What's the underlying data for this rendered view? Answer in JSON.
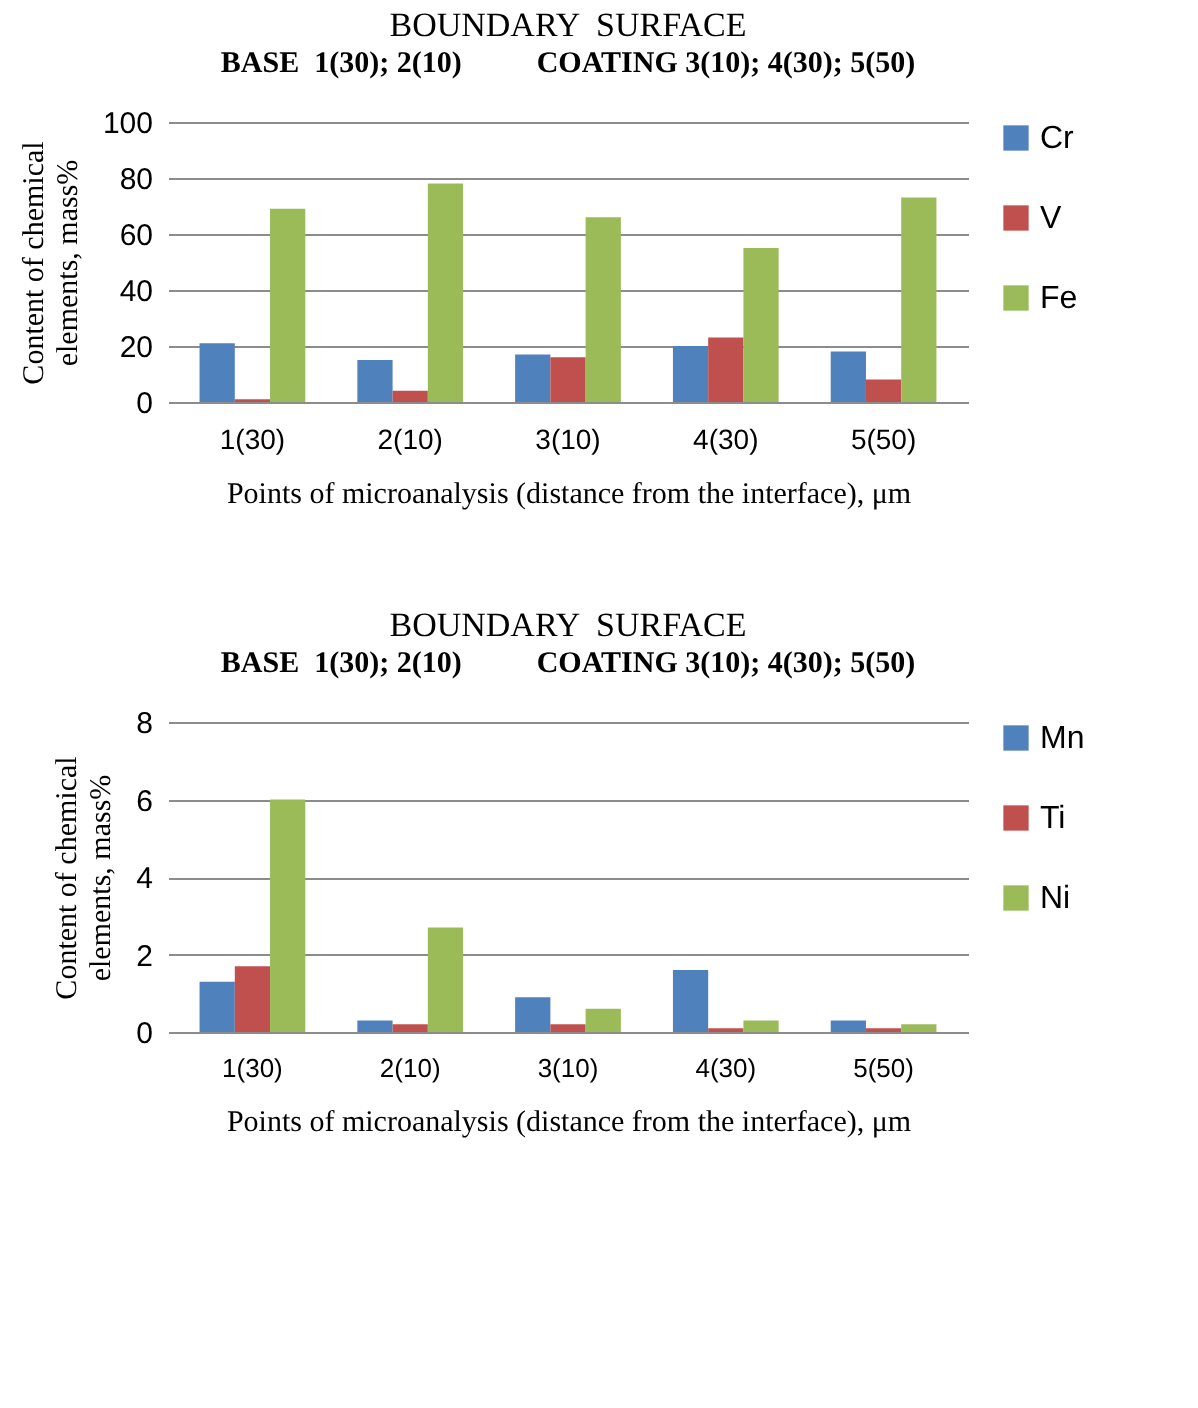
{
  "chart_data": [
    {
      "type": "bar",
      "title": "BOUNDARY  SURFACE",
      "subtitle": "BASE  1(30); 2(10)          COATING 3(10); 4(30); 5(50)",
      "xlabel": "Points of microanalysis (distance from the interface), μm",
      "ylabel": "Content of chemical elements, mass%",
      "categories": [
        "1(30)",
        "2(10)",
        "3(10)",
        "4(30)",
        "5(50)"
      ],
      "series": [
        {
          "name": "Cr",
          "color": "#4f81bd",
          "values": [
            21,
            15,
            17,
            20,
            18
          ]
        },
        {
          "name": "V",
          "color": "#c0504d",
          "values": [
            1,
            4,
            16,
            23,
            8
          ]
        },
        {
          "name": "Fe",
          "color": "#9bbb59",
          "values": [
            69,
            78,
            66,
            55,
            73
          ]
        }
      ],
      "ylim": [
        0,
        100
      ],
      "yticks": [
        0,
        20,
        40,
        60,
        80,
        100
      ],
      "grid": "y",
      "legend": "right"
    },
    {
      "type": "bar",
      "title": "BOUNDARY  SURFACE",
      "subtitle": "BASE  1(30); 2(10)          COATING 3(10); 4(30); 5(50)",
      "xlabel": "Points of microanalysis (distance from the interface), μm",
      "ylabel": "Content of chemical elements, mass%",
      "categories": [
        "1(30)",
        "2(10)",
        "3(10)",
        "4(30)",
        "5(50)"
      ],
      "series": [
        {
          "name": "Mn",
          "color": "#4f81bd",
          "values": [
            1.3,
            0.3,
            0.9,
            1.6,
            0.3
          ]
        },
        {
          "name": "Ti",
          "color": "#c0504d",
          "values": [
            1.7,
            0.2,
            0.2,
            0.1,
            0.1
          ]
        },
        {
          "name": "Ni",
          "color": "#9bbb59",
          "values": [
            6.0,
            2.7,
            0.6,
            0.3,
            0.2
          ]
        }
      ],
      "ylim": [
        0,
        8
      ],
      "yticks": [
        0,
        2,
        4,
        6,
        8
      ],
      "grid": "y",
      "legend": "right"
    }
  ]
}
